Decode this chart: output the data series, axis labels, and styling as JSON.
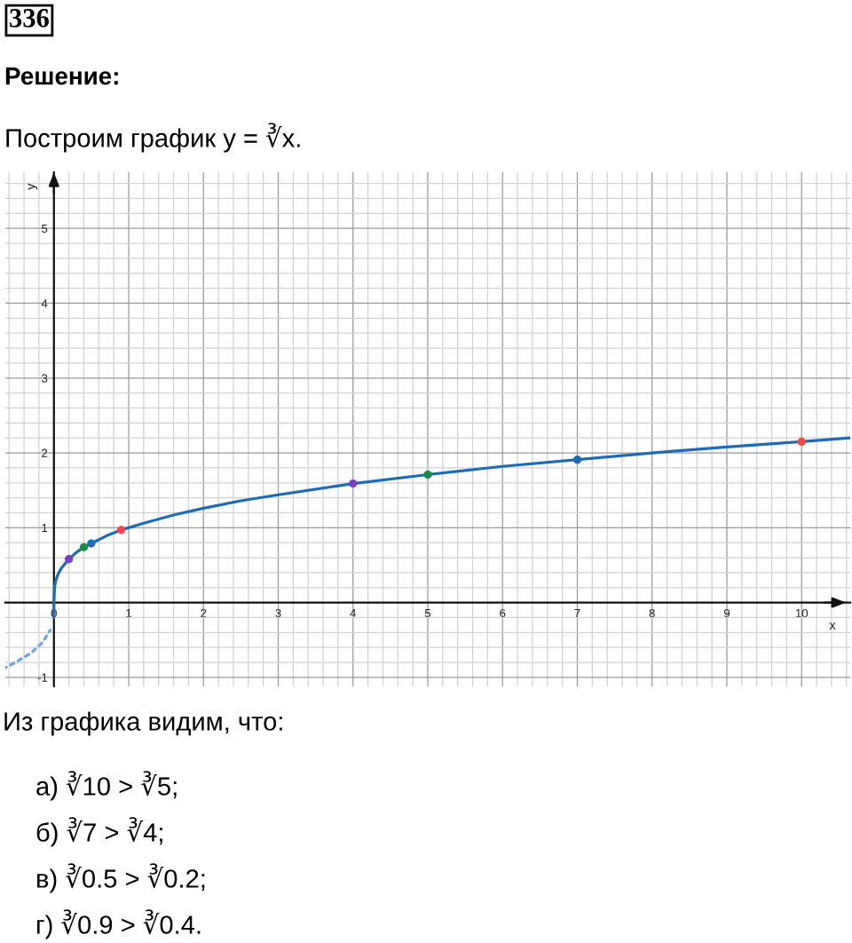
{
  "chart_data": {
    "type": "line",
    "title": "336",
    "subtitle": "Решение:",
    "xlabel": "x",
    "ylabel": "y",
    "annotations": [
      "Построим график y = ∛x.",
      "Из графика видим, что:",
      "а) ∛10 > ∛5;",
      "б) ∛7 > ∛4;",
      "в) ∛0.5 > ∛0.2;",
      "г) ∛0.9 > ∛0.4."
    ],
    "series": [
      {
        "type": "line",
        "color": "#1e6bb8",
        "x": [
          0,
          0,
          0.01,
          0.03,
          0.06,
          0.1,
          0.2,
          0.3,
          0.4,
          0.5,
          0.7,
          0.9,
          1.2,
          1.6,
          2,
          2.5,
          3,
          4,
          5,
          6,
          7,
          8,
          9,
          10,
          10.65
        ],
        "values": [
          -0.2,
          0,
          0.22,
          0.31,
          0.39,
          0.46,
          0.58,
          0.67,
          0.74,
          0.79,
          0.89,
          0.97,
          1.06,
          1.17,
          1.26,
          1.36,
          1.44,
          1.59,
          1.71,
          1.82,
          1.91,
          2,
          2.08,
          2.15,
          2.2
        ]
      },
      {
        "type": "line",
        "color": "#6aa5db",
        "line_style": "dashed",
        "x": [
          -0.65,
          -0.5,
          -0.3,
          -0.15,
          -0.05
        ],
        "values": [
          -0.87,
          -0.79,
          -0.67,
          -0.53,
          -0.37
        ]
      },
      {
        "type": "scatter",
        "marker": "circle",
        "x": [
          0.2,
          0.4,
          0.5,
          0.9,
          4,
          5,
          7,
          10
        ],
        "values": [
          0.58,
          0.74,
          0.79,
          0.97,
          1.59,
          1.71,
          1.91,
          2.15
        ],
        "colors": [
          "#7b3fc4",
          "#1a8a3c",
          "#1e6bb8",
          "#f04848",
          "#7b3fc4",
          "#1a8a3c",
          "#1e6bb8",
          "#f04848"
        ]
      }
    ],
    "xlim": [
      -0.65,
      10.65
    ],
    "ylim": [
      -1.12,
      5.75
    ],
    "xticks": [
      {
        "value": -0.6,
        "label": null
      },
      {
        "value": -0.4,
        "label": null
      },
      {
        "value": -0.2,
        "label": null
      },
      0,
      {
        "value": 0.2,
        "label": null
      },
      {
        "value": 0.4,
        "label": null
      },
      {
        "value": 0.6,
        "label": null
      },
      {
        "value": 0.8,
        "label": null
      },
      1,
      {
        "value": 1.2,
        "label": null
      },
      {
        "value": 1.4,
        "label": null
      },
      {
        "value": 1.6,
        "label": null
      },
      {
        "value": 1.8,
        "label": null
      },
      2,
      {
        "value": 2.2,
        "label": null
      },
      {
        "value": 2.4,
        "label": null
      },
      {
        "value": 2.6,
        "label": null
      },
      {
        "value": 2.8,
        "label": null
      },
      3,
      {
        "value": 3.2,
        "label": null
      },
      {
        "value": 3.4,
        "label": null
      },
      {
        "value": 3.6,
        "label": null
      },
      {
        "value": 3.8,
        "label": null
      },
      4,
      {
        "value": 4.2,
        "label": null
      },
      {
        "value": 4.4,
        "label": null
      },
      {
        "value": 4.6,
        "label": null
      },
      {
        "value": 4.8,
        "label": null
      },
      5,
      {
        "value": 5.2,
        "label": null
      },
      {
        "value": 5.4,
        "label": null
      },
      {
        "value": 5.6,
        "label": null
      },
      {
        "value": 5.8,
        "label": null
      },
      6,
      {
        "value": 6.2,
        "label": null
      },
      {
        "value": 6.4,
        "label": null
      },
      {
        "value": 6.6,
        "label": null
      },
      {
        "value": 6.8,
        "label": null
      },
      7,
      {
        "value": 7.2,
        "label": null
      },
      {
        "value": 7.4,
        "label": null
      },
      {
        "value": 7.6,
        "label": null
      },
      {
        "value": 7.8,
        "label": null
      },
      8,
      {
        "value": 8.2,
        "label": null
      },
      {
        "value": 8.4,
        "label": null
      },
      {
        "value": 8.6,
        "label": null
      },
      {
        "value": 8.8,
        "label": null
      },
      9,
      {
        "value": 9.2,
        "label": null
      },
      {
        "value": 9.4,
        "label": null
      },
      {
        "value": 9.6,
        "label": null
      },
      {
        "value": 9.8,
        "label": null
      },
      10,
      {
        "value": 10.2,
        "label": null
      },
      {
        "value": 10.4,
        "label": null
      },
      {
        "value": 10.6,
        "label": null
      }
    ],
    "yticks": [
      -1,
      {
        "value": -0.8,
        "label": null
      },
      {
        "value": -0.6,
        "label": null
      },
      {
        "value": -0.4,
        "label": null
      },
      {
        "value": -0.2,
        "label": null
      },
      {
        "value": 0.2,
        "label": null
      },
      {
        "value": 0.4,
        "label": null
      },
      {
        "value": 0.6,
        "label": null
      },
      {
        "value": 0.8,
        "label": null
      },
      1,
      {
        "value": 1.2,
        "label": null
      },
      {
        "value": 1.4,
        "label": null
      },
      {
        "value": 1.6,
        "label": null
      },
      {
        "value": 1.8,
        "label": null
      },
      2,
      {
        "value": 2.2,
        "label": null
      },
      {
        "value": 2.4,
        "label": null
      },
      {
        "value": 2.6,
        "label": null
      },
      {
        "value": 2.8,
        "label": null
      },
      3,
      {
        "value": 3.2,
        "label": null
      },
      {
        "value": 3.4,
        "label": null
      },
      {
        "value": 3.6,
        "label": null
      },
      {
        "value": 3.8,
        "label": null
      },
      4,
      {
        "value": 4.2,
        "label": null
      },
      {
        "value": 4.4,
        "label": null
      },
      {
        "value": 4.6,
        "label": null
      },
      {
        "value": 4.8,
        "label": null
      },
      5,
      {
        "value": 5.2,
        "label": null
      },
      {
        "value": 5.4,
        "label": null
      },
      {
        "value": 5.6,
        "label": null
      }
    ],
    "grid": true,
    "line_style": "solid"
  }
}
